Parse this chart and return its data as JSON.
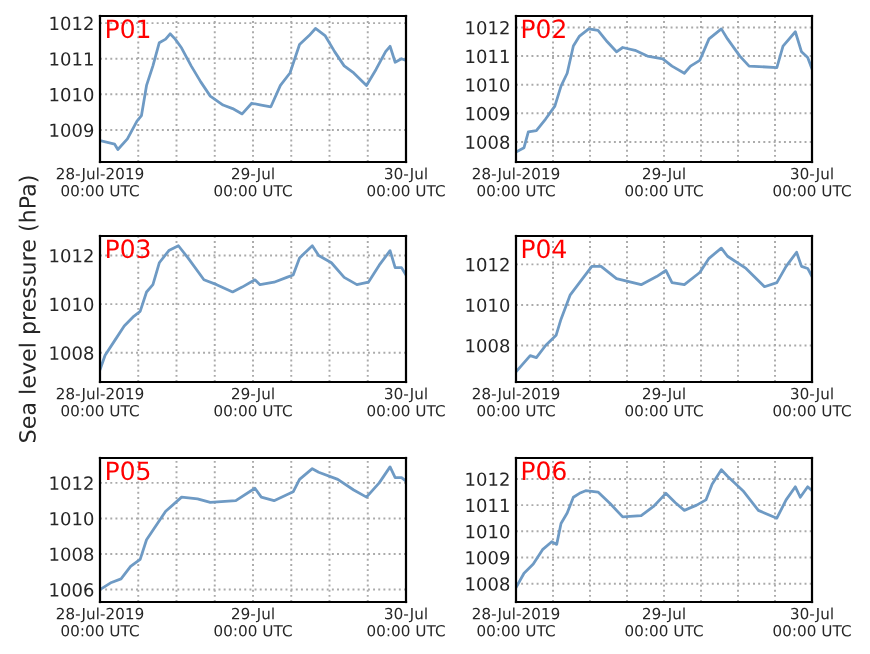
{
  "chart_data": [
    {
      "type": "line",
      "title": "P01",
      "x": [
        "2019-07-28T00:00",
        "2019-07-28T02:18",
        "2019-07-28T02:48",
        "2019-07-28T04:18",
        "2019-07-28T05:48",
        "2019-07-28T06:30",
        "2019-07-28T07:18",
        "2019-07-28T08:18",
        "2019-07-28T09:18",
        "2019-07-28T10:18",
        "2019-07-28T11:00",
        "2019-07-28T11:48",
        "2019-07-28T12:48",
        "2019-07-28T14:18",
        "2019-07-28T15:48",
        "2019-07-28T17:18",
        "2019-07-28T19:18",
        "2019-07-28T20:48",
        "2019-07-28T22:18",
        "2019-07-28T23:48",
        "2019-07-29T01:18",
        "2019-07-29T02:48",
        "2019-07-29T04:18",
        "2019-07-29T05:48",
        "2019-07-29T07:18",
        "2019-07-29T08:48",
        "2019-07-29T09:48",
        "2019-07-29T11:18",
        "2019-07-29T12:48",
        "2019-07-29T14:18",
        "2019-07-29T15:48",
        "2019-07-29T17:48",
        "2019-07-29T19:18",
        "2019-07-29T20:48",
        "2019-07-29T21:30",
        "2019-07-29T22:18",
        "2019-07-29T23:18",
        "2019-07-30T00:00"
      ],
      "series": [
        {
          "color": "#6e9ac4",
          "values": [
            1008.7,
            1008.6,
            1008.45,
            1008.75,
            1009.25,
            1009.4,
            1010.25,
            1010.8,
            1011.45,
            1011.55,
            1011.7,
            1011.55,
            1011.3,
            1010.8,
            1010.35,
            1009.95,
            1009.7,
            1009.6,
            1009.45,
            1009.75,
            1009.7,
            1009.65,
            1010.25,
            1010.6,
            1011.4,
            1011.65,
            1011.85,
            1011.65,
            1011.2,
            1010.8,
            1010.6,
            1010.25,
            1010.7,
            1011.2,
            1011.35,
            1010.9,
            1011,
            1010.95
          ]
        }
      ],
      "xlim": [
        "2019-07-28T00:00",
        "2019-07-30T00:00"
      ],
      "xticks": [
        {
          "value": "2019-07-28T00:00",
          "label": "28-Jul-2019\n00:00 UTC"
        },
        {
          "value": "2019-07-28T06:00",
          "label": null
        },
        {
          "value": "2019-07-28T12:00",
          "label": null
        },
        {
          "value": "2019-07-28T18:00",
          "label": null
        },
        {
          "value": "2019-07-29T00:00",
          "label": "29-Jul\n00:00 UTC"
        },
        {
          "value": "2019-07-29T06:00",
          "label": null
        },
        {
          "value": "2019-07-29T12:00",
          "label": null
        },
        {
          "value": "2019-07-29T18:00",
          "label": null
        },
        {
          "value": "2019-07-30T00:00",
          "label": "30-Jul\n00:00 UTC"
        }
      ],
      "ylim": [
        1008.1,
        1012.2
      ],
      "yticks": [
        1009,
        1010,
        1011,
        1012
      ],
      "grid": true
    },
    {
      "type": "line",
      "title": "P02",
      "x": [
        "2019-07-28T00:00",
        "2019-07-28T01:18",
        "2019-07-28T02:00",
        "2019-07-28T03:18",
        "2019-07-28T04:48",
        "2019-07-28T06:18",
        "2019-07-28T07:18",
        "2019-07-28T08:18",
        "2019-07-28T09:18",
        "2019-07-28T10:18",
        "2019-07-28T11:48",
        "2019-07-28T13:18",
        "2019-07-28T14:48",
        "2019-07-28T16:18",
        "2019-07-28T17:18",
        "2019-07-28T19:18",
        "2019-07-28T21:18",
        "2019-07-28T23:48",
        "2019-07-29T01:18",
        "2019-07-29T03:18",
        "2019-07-29T04:18",
        "2019-07-29T05:48",
        "2019-07-29T07:18",
        "2019-07-29T09:18",
        "2019-07-29T10:18",
        "2019-07-29T12:18",
        "2019-07-29T13:48",
        "2019-07-29T18:18",
        "2019-07-29T19:18",
        "2019-07-29T21:18",
        "2019-07-29T22:18",
        "2019-07-29T23:18",
        "2019-07-30T00:00"
      ],
      "series": [
        {
          "color": "#6e9ac4",
          "values": [
            1007.65,
            1007.8,
            1008.35,
            1008.4,
            1008.8,
            1009.25,
            1009.95,
            1010.4,
            1011.35,
            1011.7,
            1011.95,
            1011.9,
            1011.5,
            1011.15,
            1011.3,
            1011.2,
            1011,
            1010.9,
            1010.65,
            1010.4,
            1010.65,
            1010.85,
            1011.6,
            1011.95,
            1011.6,
            1011,
            1010.65,
            1010.6,
            1011.35,
            1011.85,
            1011.15,
            1010.95,
            1010.55
          ]
        }
      ],
      "xlim": [
        "2019-07-28T00:00",
        "2019-07-30T00:00"
      ],
      "xticks": [
        {
          "value": "2019-07-28T00:00",
          "label": "28-Jul-2019\n00:00 UTC"
        },
        {
          "value": "2019-07-28T06:00",
          "label": null
        },
        {
          "value": "2019-07-28T12:00",
          "label": null
        },
        {
          "value": "2019-07-28T18:00",
          "label": null
        },
        {
          "value": "2019-07-29T00:00",
          "label": "29-Jul\n00:00 UTC"
        },
        {
          "value": "2019-07-29T06:00",
          "label": null
        },
        {
          "value": "2019-07-29T12:00",
          "label": null
        },
        {
          "value": "2019-07-29T18:00",
          "label": null
        },
        {
          "value": "2019-07-30T00:00",
          "label": "30-Jul\n00:00 UTC"
        }
      ],
      "ylim": [
        1007.3,
        1012.4
      ],
      "yticks": [
        1008,
        1009,
        1010,
        1011,
        1012
      ],
      "grid": true
    },
    {
      "type": "line",
      "title": "P03",
      "ylabel": "Sea level pressure (hPa)",
      "x": [
        "2019-07-28T00:00",
        "2019-07-28T00:48",
        "2019-07-28T02:18",
        "2019-07-28T03:48",
        "2019-07-28T05:18",
        "2019-07-28T06:18",
        "2019-07-28T07:18",
        "2019-07-28T08:18",
        "2019-07-28T09:18",
        "2019-07-28T10:48",
        "2019-07-28T12:18",
        "2019-07-28T13:48",
        "2019-07-28T16:18",
        "2019-07-28T18:18",
        "2019-07-28T20:48",
        "2019-07-28T22:18",
        "2019-07-29T00:18",
        "2019-07-29T01:06",
        "2019-07-29T03:18",
        "2019-07-29T05:18",
        "2019-07-29T06:18",
        "2019-07-29T07:18",
        "2019-07-29T09:18",
        "2019-07-29T10:18",
        "2019-07-29T12:18",
        "2019-07-29T14:18",
        "2019-07-29T16:18",
        "2019-07-29T18:06",
        "2019-07-29T19:48",
        "2019-07-29T21:30",
        "2019-07-29T22:18",
        "2019-07-29T23:18",
        "2019-07-30T00:00"
      ],
      "series": [
        {
          "color": "#6e9ac4",
          "values": [
            1007.3,
            1007.9,
            1008.5,
            1009.1,
            1009.5,
            1009.7,
            1010.5,
            1010.8,
            1011.7,
            1012.2,
            1012.4,
            1011.9,
            1011,
            1010.8,
            1010.5,
            1010.7,
            1011,
            1010.8,
            1010.9,
            1011.1,
            1011.2,
            1011.9,
            1012.4,
            1012,
            1011.7,
            1011.1,
            1010.8,
            1010.9,
            1011.6,
            1012.2,
            1011.5,
            1011.5,
            1011.2
          ]
        }
      ],
      "xlim": [
        "2019-07-28T00:00",
        "2019-07-30T00:00"
      ],
      "xticks": [
        {
          "value": "2019-07-28T00:00",
          "label": "28-Jul-2019\n00:00 UTC"
        },
        {
          "value": "2019-07-28T06:00",
          "label": null
        },
        {
          "value": "2019-07-28T12:00",
          "label": null
        },
        {
          "value": "2019-07-28T18:00",
          "label": null
        },
        {
          "value": "2019-07-29T00:00",
          "label": "29-Jul\n00:00 UTC"
        },
        {
          "value": "2019-07-29T06:00",
          "label": null
        },
        {
          "value": "2019-07-29T12:00",
          "label": null
        },
        {
          "value": "2019-07-29T18:00",
          "label": null
        },
        {
          "value": "2019-07-30T00:00",
          "label": "30-Jul\n00:00 UTC"
        }
      ],
      "ylim": [
        1006.8,
        1012.8
      ],
      "yticks": [
        1008,
        1010,
        1012
      ],
      "grid": true
    },
    {
      "type": "line",
      "title": "P04",
      "x": [
        "2019-07-28T00:00",
        "2019-07-28T02:18",
        "2019-07-28T03:18",
        "2019-07-28T04:48",
        "2019-07-28T06:30",
        "2019-07-28T07:18",
        "2019-07-28T08:48",
        "2019-07-28T10:18",
        "2019-07-28T12:18",
        "2019-07-28T13:48",
        "2019-07-28T16:18",
        "2019-07-28T20:18",
        "2019-07-28T22:48",
        "2019-07-29T00:18",
        "2019-07-29T01:18",
        "2019-07-29T03:18",
        "2019-07-29T05:48",
        "2019-07-29T07:18",
        "2019-07-29T09:18",
        "2019-07-29T10:18",
        "2019-07-29T13:18",
        "2019-07-29T16:18",
        "2019-07-29T18:18",
        "2019-07-29T19:48",
        "2019-07-29T21:30",
        "2019-07-29T22:18",
        "2019-07-29T23:18",
        "2019-07-30T00:00"
      ],
      "series": [
        {
          "color": "#6e9ac4",
          "values": [
            1006.7,
            1007.5,
            1007.4,
            1008,
            1008.5,
            1009.3,
            1010.5,
            1011.1,
            1011.9,
            1011.9,
            1011.3,
            1011,
            1011.4,
            1011.7,
            1011.1,
            1011,
            1011.6,
            1012.3,
            1012.8,
            1012.4,
            1011.8,
            1010.9,
            1011.1,
            1011.9,
            1012.6,
            1011.9,
            1011.8,
            1011.4
          ]
        }
      ],
      "xlim": [
        "2019-07-28T00:00",
        "2019-07-30T00:00"
      ],
      "xticks": [
        {
          "value": "2019-07-28T00:00",
          "label": "28-Jul-2019\n00:00 UTC"
        },
        {
          "value": "2019-07-28T06:00",
          "label": null
        },
        {
          "value": "2019-07-28T12:00",
          "label": null
        },
        {
          "value": "2019-07-28T18:00",
          "label": null
        },
        {
          "value": "2019-07-29T00:00",
          "label": "29-Jul\n00:00 UTC"
        },
        {
          "value": "2019-07-29T06:00",
          "label": null
        },
        {
          "value": "2019-07-29T12:00",
          "label": null
        },
        {
          "value": "2019-07-29T18:00",
          "label": null
        },
        {
          "value": "2019-07-30T00:00",
          "label": "30-Jul\n00:00 UTC"
        }
      ],
      "ylim": [
        1006.2,
        1013.4
      ],
      "yticks": [
        1008,
        1010,
        1012
      ],
      "grid": true
    },
    {
      "type": "line",
      "title": "P05",
      "x": [
        "2019-07-28T00:00",
        "2019-07-28T01:48",
        "2019-07-28T03:18",
        "2019-07-28T04:48",
        "2019-07-28T06:18",
        "2019-07-28T07:18",
        "2019-07-28T08:48",
        "2019-07-28T10:18",
        "2019-07-28T12:48",
        "2019-07-28T15:18",
        "2019-07-28T17:18",
        "2019-07-28T21:18",
        "2019-07-29T00:18",
        "2019-07-29T01:18",
        "2019-07-29T03:18",
        "2019-07-29T06:18",
        "2019-07-29T07:18",
        "2019-07-29T09:18",
        "2019-07-29T10:18",
        "2019-07-29T13:18",
        "2019-07-29T15:48",
        "2019-07-29T17:48",
        "2019-07-29T19:48",
        "2019-07-29T21:30",
        "2019-07-29T22:18",
        "2019-07-29T23:18",
        "2019-07-30T00:00"
      ],
      "series": [
        {
          "color": "#6e9ac4",
          "values": [
            1006,
            1006.4,
            1006.6,
            1007.3,
            1007.7,
            1008.8,
            1009.6,
            1010.4,
            1011.2,
            1011.1,
            1010.9,
            1011,
            1011.7,
            1011.2,
            1011,
            1011.5,
            1012.2,
            1012.8,
            1012.6,
            1012.2,
            1011.6,
            1011.2,
            1012,
            1012.9,
            1012.3,
            1012.3,
            1012.1
          ]
        }
      ],
      "xlim": [
        "2019-07-28T00:00",
        "2019-07-30T00:00"
      ],
      "xticks": [
        {
          "value": "2019-07-28T00:00",
          "label": "28-Jul-2019\n00:00 UTC"
        },
        {
          "value": "2019-07-28T06:00",
          "label": null
        },
        {
          "value": "2019-07-28T12:00",
          "label": null
        },
        {
          "value": "2019-07-28T18:00",
          "label": null
        },
        {
          "value": "2019-07-29T00:00",
          "label": "29-Jul\n00:00 UTC"
        },
        {
          "value": "2019-07-29T06:00",
          "label": null
        },
        {
          "value": "2019-07-29T12:00",
          "label": null
        },
        {
          "value": "2019-07-29T18:00",
          "label": null
        },
        {
          "value": "2019-07-30T00:00",
          "label": "30-Jul\n00:00 UTC"
        }
      ],
      "ylim": [
        1005.3,
        1013.4
      ],
      "yticks": [
        1006,
        1008,
        1010,
        1012
      ],
      "grid": true
    },
    {
      "type": "line",
      "title": "P06",
      "x": [
        "2019-07-28T00:00",
        "2019-07-28T01:18",
        "2019-07-28T02:48",
        "2019-07-28T04:18",
        "2019-07-28T05:48",
        "2019-07-28T06:36",
        "2019-07-28T07:18",
        "2019-07-28T08:18",
        "2019-07-28T09:18",
        "2019-07-28T10:18",
        "2019-07-28T11:18",
        "2019-07-28T13:18",
        "2019-07-28T15:18",
        "2019-07-28T17:18",
        "2019-07-28T20:18",
        "2019-07-28T22:18",
        "2019-07-29T00:18",
        "2019-07-29T01:48",
        "2019-07-29T03:18",
        "2019-07-29T05:18",
        "2019-07-29T06:48",
        "2019-07-29T07:48",
        "2019-07-29T09:18",
        "2019-07-29T10:18",
        "2019-07-29T12:48",
        "2019-07-29T15:18",
        "2019-07-29T18:18",
        "2019-07-29T19:48",
        "2019-07-29T21:18",
        "2019-07-29T22:06",
        "2019-07-29T23:18",
        "2019-07-30T00:00"
      ],
      "series": [
        {
          "color": "#6e9ac4",
          "values": [
            1007.85,
            1008.4,
            1008.75,
            1009.3,
            1009.6,
            1009.5,
            1010.3,
            1010.7,
            1011.3,
            1011.45,
            1011.55,
            1011.5,
            1011.05,
            1010.55,
            1010.6,
            1010.95,
            1011.45,
            1011.1,
            1010.8,
            1011,
            1011.2,
            1011.8,
            1012.35,
            1012.1,
            1011.55,
            1010.8,
            1010.5,
            1011.2,
            1011.7,
            1011.3,
            1011.7,
            1011.55
          ]
        }
      ],
      "xlim": [
        "2019-07-28T00:00",
        "2019-07-30T00:00"
      ],
      "xticks": [
        {
          "value": "2019-07-28T00:00",
          "label": "28-Jul-2019\n00:00 UTC"
        },
        {
          "value": "2019-07-28T06:00",
          "label": null
        },
        {
          "value": "2019-07-28T12:00",
          "label": null
        },
        {
          "value": "2019-07-28T18:00",
          "label": null
        },
        {
          "value": "2019-07-29T00:00",
          "label": "29-Jul\n00:00 UTC"
        },
        {
          "value": "2019-07-29T06:00",
          "label": null
        },
        {
          "value": "2019-07-29T12:00",
          "label": null
        },
        {
          "value": "2019-07-29T18:00",
          "label": null
        },
        {
          "value": "2019-07-30T00:00",
          "label": "30-Jul\n00:00 UTC"
        }
      ],
      "ylim": [
        1007.3,
        1012.8
      ],
      "yticks": [
        1008,
        1009,
        1010,
        1011,
        1012
      ],
      "grid": true
    }
  ]
}
